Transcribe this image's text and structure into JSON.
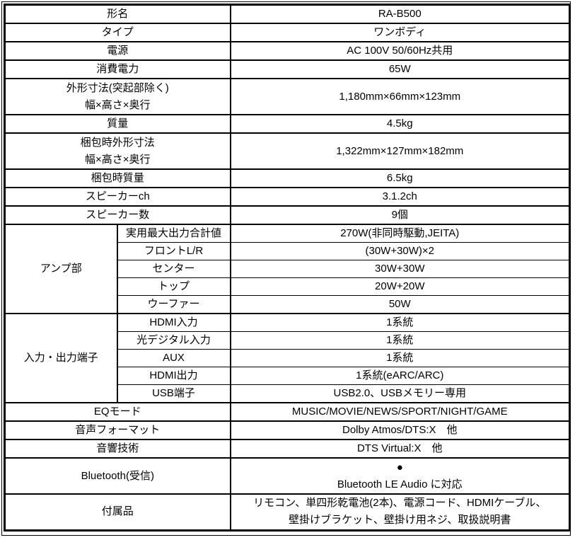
{
  "table": {
    "rows": [
      {
        "label": "形名",
        "value": "RA-B500"
      },
      {
        "label": "タイプ",
        "value": "ワンボディ"
      },
      {
        "label": "電源",
        "value": "AC 100V 50/60Hz共用"
      },
      {
        "label": "消費電力",
        "value": "65W"
      },
      {
        "label": "外形寸法(突起部除く)\n幅×高さ×奥行",
        "value": "1,180mm×66mm×123mm"
      },
      {
        "label": "質量",
        "value": "4.5kg"
      },
      {
        "label": "梱包時外形寸法\n幅×高さ×奥行",
        "value": "1,322mm×127mm×182mm"
      },
      {
        "label": "梱包時質量",
        "value": "6.5kg"
      },
      {
        "label": "スピーカーch",
        "value": "3.1.2ch"
      },
      {
        "label": "スピーカー数",
        "value": "9個"
      }
    ],
    "groups": [
      {
        "label": "アンプ部",
        "rows": [
          {
            "label": "実用最大出力合計値",
            "value": "270W(非同時駆動,JEITA)"
          },
          {
            "label": "フロントL/R",
            "value": "(30W+30W)×2"
          },
          {
            "label": "センター",
            "value": "30W+30W"
          },
          {
            "label": "トップ",
            "value": "20W+20W"
          },
          {
            "label": "ウーファー",
            "value": "50W"
          }
        ]
      },
      {
        "label": "入力・出力端子",
        "rows": [
          {
            "label": "HDMI入力",
            "value": "1系統"
          },
          {
            "label": "光デジタル入力",
            "value": "1系統"
          },
          {
            "label": "AUX",
            "value": "1系統"
          },
          {
            "label": "HDMI出力",
            "value": "1系統(eARC/ARC)"
          },
          {
            "label": "USB端子",
            "value": "USB2.0、USBメモリー専用"
          }
        ]
      }
    ],
    "footer_rows": [
      {
        "label": "EQモード",
        "value": "MUSIC/MOVIE/NEWS/SPORT/NIGHT/GAME"
      },
      {
        "label": "音声フォーマット",
        "value": "Dolby Atmos/DTS:X　他"
      },
      {
        "label": "音響技術",
        "value": "DTS Virtual:X　他"
      },
      {
        "label": "Bluetooth(受信)",
        "value": "●\nBluetooth LE Audio に対応"
      },
      {
        "label": "付属品",
        "value": "リモコン、単四形乾電池(2本)、電源コード、HDMIケーブル、\n壁掛けブラケット、壁掛け用ネジ、取扱説明書"
      }
    ],
    "colors": {
      "border": "#000000",
      "text": "#000000",
      "background": "#ffffff"
    }
  }
}
